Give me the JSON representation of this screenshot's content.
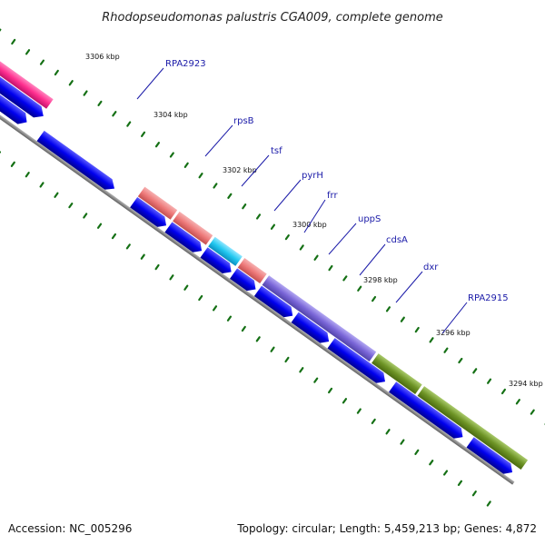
{
  "title": "Rhodopseudomonas palustris CGA009, complete genome",
  "accession": "Accession: NC_005296",
  "summary": "Topology: circular; Length: 5,459,213 bp; Genes: 4,872",
  "scale_ticks": [
    {
      "label": "3306 kbp",
      "kbp": 3306
    },
    {
      "label": "3304 kbp",
      "kbp": 3304
    },
    {
      "label": "3302 kbp",
      "kbp": 3302
    },
    {
      "label": "3300 kbp",
      "kbp": 3300
    },
    {
      "label": "3298 kbp",
      "kbp": 3298
    },
    {
      "label": "3296 kbp",
      "kbp": 3296
    },
    {
      "label": "3294 kbp",
      "kbp": 3294
    }
  ],
  "gene_labels": [
    "RPA2923",
    "rpsB",
    "tsf",
    "pyrH",
    "frr",
    "uppS",
    "cdsA",
    "dxr",
    "RPA2915"
  ],
  "colors": {
    "cds_arrow": "#0000ee",
    "backbone": "#808080",
    "ticks": "#157015",
    "pink": "#ff2f8f",
    "salmon": "#ee7a7a",
    "cyan": "#22c8f0",
    "purple": "#7a66d8",
    "olive": "#6e9426"
  }
}
